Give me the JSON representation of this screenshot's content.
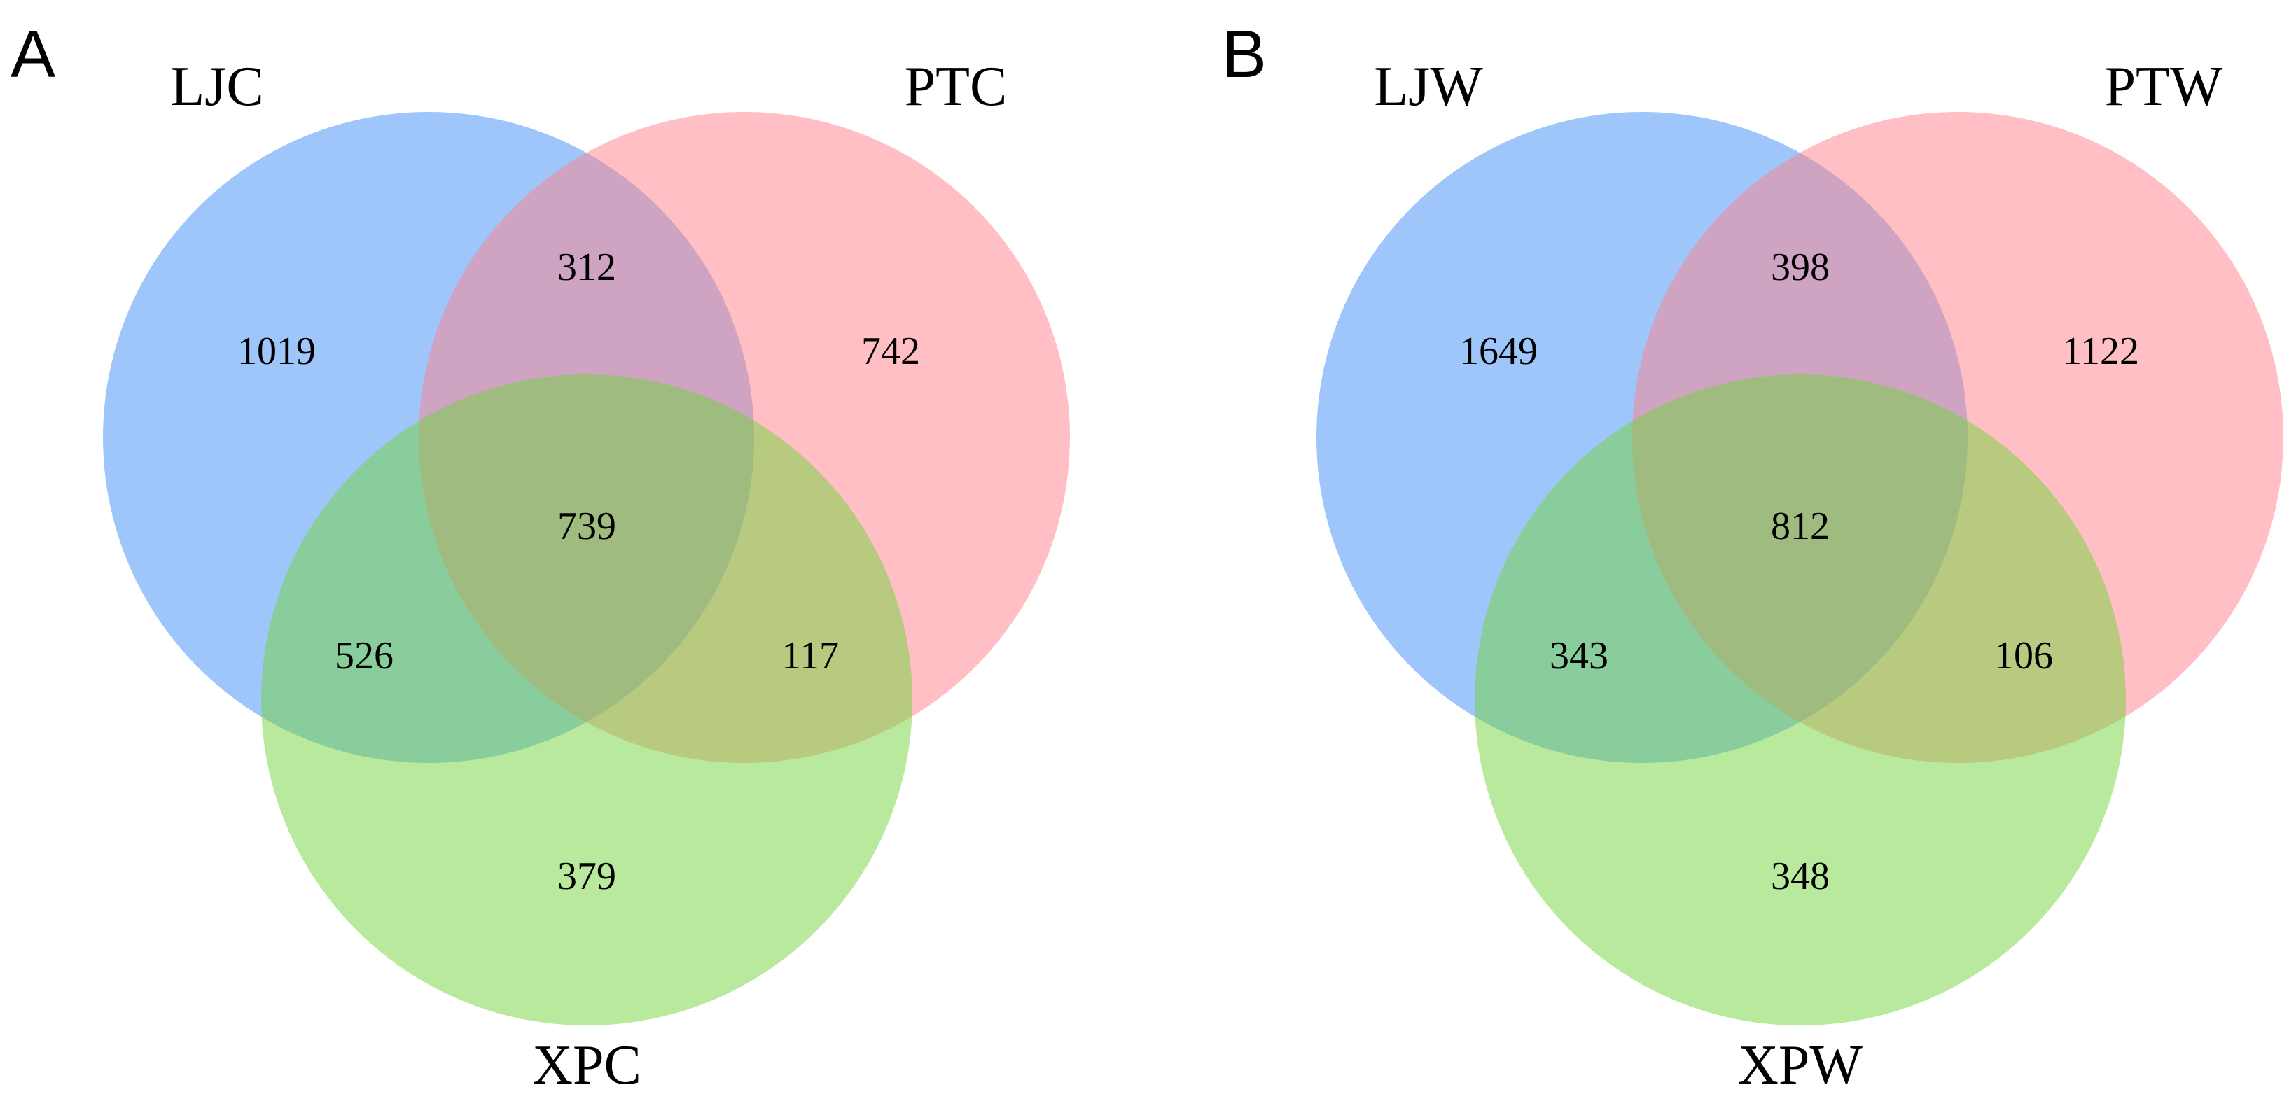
{
  "colors": {
    "set_1": "#3f8ef5",
    "set_2": "#ff7f8a",
    "set_3": "#72d33b"
  },
  "panels": [
    {
      "letter": "A",
      "sets": [
        "LJC",
        "PTC",
        "XPC"
      ],
      "regions": {
        "only_1": "1019",
        "only_2": "742",
        "only_3": "379",
        "set_1_2": "312",
        "set_1_3": "526",
        "set_2_3": "117",
        "all": "739"
      }
    },
    {
      "letter": "B",
      "sets": [
        "LJW",
        "PTW",
        "XPW"
      ],
      "regions": {
        "only_1": "1649",
        "only_2": "1122",
        "only_3": "348",
        "set_1_2": "398",
        "set_1_3": "343",
        "set_2_3": "106",
        "all": "812"
      }
    }
  ]
}
